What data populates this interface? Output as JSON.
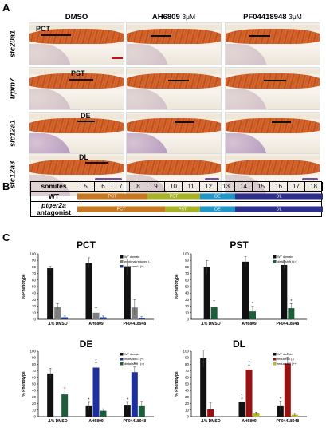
{
  "panel_labels": {
    "a": "A",
    "b": "B",
    "c": "C"
  },
  "panel_a": {
    "columns": [
      {
        "name": "DMSO",
        "conc": ""
      },
      {
        "name": "AH6809",
        "conc": "3μM"
      },
      {
        "name": "PF04418948",
        "conc": "3μM"
      }
    ],
    "rows": [
      {
        "gene": "slc20a1",
        "segment": "PCT"
      },
      {
        "gene": "trpm7",
        "segment": "PST"
      },
      {
        "gene": "slc12a1",
        "segment": "DE"
      },
      {
        "gene": "slc12a3",
        "segment": "DL"
      }
    ]
  },
  "panel_b": {
    "header_label": "somites",
    "somites": [
      "5",
      "6",
      "7",
      "8",
      "9",
      "10",
      "11",
      "12",
      "13",
      "14",
      "15",
      "16",
      "17",
      "18"
    ],
    "rows": [
      {
        "label": "WT",
        "segments": [
          {
            "name": "PCT",
            "start": 5,
            "end": 8,
            "color": "#c8781e"
          },
          {
            "name": "PST",
            "start": 9,
            "end": 11,
            "color": "#a8b423"
          },
          {
            "name": "DE",
            "start": 12,
            "end": 13,
            "color": "#1f96c8"
          },
          {
            "name": "DL",
            "start": 14,
            "end": 18,
            "color": "#2e2e8c"
          }
        ]
      },
      {
        "label_italic": "ptger2a",
        "label_rest": "antagonist",
        "segments": [
          {
            "name": "PCT",
            "start": 5,
            "end": 9,
            "color": "#c8781e"
          },
          {
            "name": "PST",
            "start": 10,
            "end": 11,
            "color": "#a8b423"
          },
          {
            "name": "DE",
            "start": 12,
            "end": 13,
            "color": "#1f96c8"
          },
          {
            "name": "DL",
            "start": 14,
            "end": 18,
            "color": "#2e2e8c"
          }
        ]
      }
    ]
  },
  "chart_data": [
    {
      "type": "bar",
      "title": "PCT",
      "ylabel": "% Phenotype",
      "ylim": [
        0,
        100
      ],
      "yticks": [
        "0",
        "10",
        "20",
        "30",
        "40",
        "50",
        "60",
        "70",
        "80",
        "90",
        "100"
      ],
      "categories": [
        ".1% DMSO",
        "AH6809",
        "PF04418948"
      ],
      "series": [
        {
          "name": "WT domain",
          "color": "#111111",
          "values": [
            78,
            86,
            80
          ],
          "errors": [
            3,
            8,
            12
          ]
        },
        {
          "name": "proximal reduced (-)",
          "color": "#808080",
          "values": [
            19,
            10,
            18
          ],
          "errors": [
            5,
            8,
            12
          ]
        },
        {
          "name": "increased I (+)",
          "color": "#1e3c96",
          "values": [
            3,
            3,
            2
          ],
          "errors": [
            2,
            2,
            2
          ]
        }
      ],
      "annotations": [
        "*",
        "*"
      ]
    },
    {
      "type": "bar",
      "title": "PST",
      "ylabel": "% Phenotype",
      "ylim": [
        0,
        100
      ],
      "yticks": [
        "0",
        "10",
        "20",
        "30",
        "40",
        "50",
        "60",
        "70",
        "80",
        "90",
        "100"
      ],
      "categories": [
        ".1% DMSO",
        "AH6809",
        "PF04418948"
      ],
      "series": [
        {
          "name": "WT domain",
          "color": "#111111",
          "values": [
            80,
            88,
            83
          ],
          "errors": [
            10,
            8,
            7
          ]
        },
        {
          "name": "distal shift I (>)",
          "color": "#1a5f3a",
          "values": [
            19,
            12,
            17
          ],
          "errors": [
            10,
            8,
            7
          ]
        }
      ],
      "annotations": [
        "*",
        "*"
      ]
    },
    {
      "type": "bar",
      "title": "DE",
      "ylabel": "% Phenotype",
      "ylim": [
        0,
        100
      ],
      "yticks": [
        "0",
        "10",
        "20",
        "30",
        "40",
        "50",
        "60",
        "70",
        "80",
        "90",
        "100"
      ],
      "categories": [
        ".1% DMSO",
        "AH6809",
        "PF04418948"
      ],
      "series": [
        {
          "name": "WT domain",
          "color": "#111111",
          "values": [
            66,
            16,
            17
          ],
          "errors": [
            8,
            6,
            5
          ]
        },
        {
          "name": "increased I (+)",
          "color": "#1e2fa0",
          "values": [
            0,
            75,
            68
          ],
          "errors": [
            0,
            7,
            8
          ]
        },
        {
          "name": "distal shift I (>)",
          "color": "#1a5f3a",
          "values": [
            34,
            9,
            16
          ],
          "errors": [
            10,
            3,
            7
          ]
        }
      ],
      "annotations": [
        "*",
        "*",
        "*",
        "*",
        "*",
        "*"
      ]
    },
    {
      "type": "bar",
      "title": "DL",
      "ylabel": "% Phenotype",
      "ylim": [
        0,
        100
      ],
      "yticks": [
        "0",
        "10",
        "20",
        "30",
        "40",
        "50",
        "60",
        "70",
        "80",
        "90",
        "100"
      ],
      "categories": [
        ".1% DMSO",
        "AH6809",
        "PF04418948"
      ],
      "series": [
        {
          "name": "WT domain",
          "color": "#111111",
          "values": [
            89,
            22,
            16
          ],
          "errors": [
            13,
            6,
            7
          ]
        },
        {
          "name": "reduced I (-)",
          "color": "#9b1010",
          "values": [
            11,
            72,
            81
          ],
          "errors": [
            10,
            7,
            10
          ]
        },
        {
          "name": "reduced II (++)",
          "color": "#b6b82a",
          "values": [
            0,
            5,
            3
          ],
          "errors": [
            0,
            2,
            2
          ]
        }
      ],
      "annotations": [
        "*",
        "*",
        "*",
        "*",
        "**",
        "**"
      ]
    }
  ]
}
